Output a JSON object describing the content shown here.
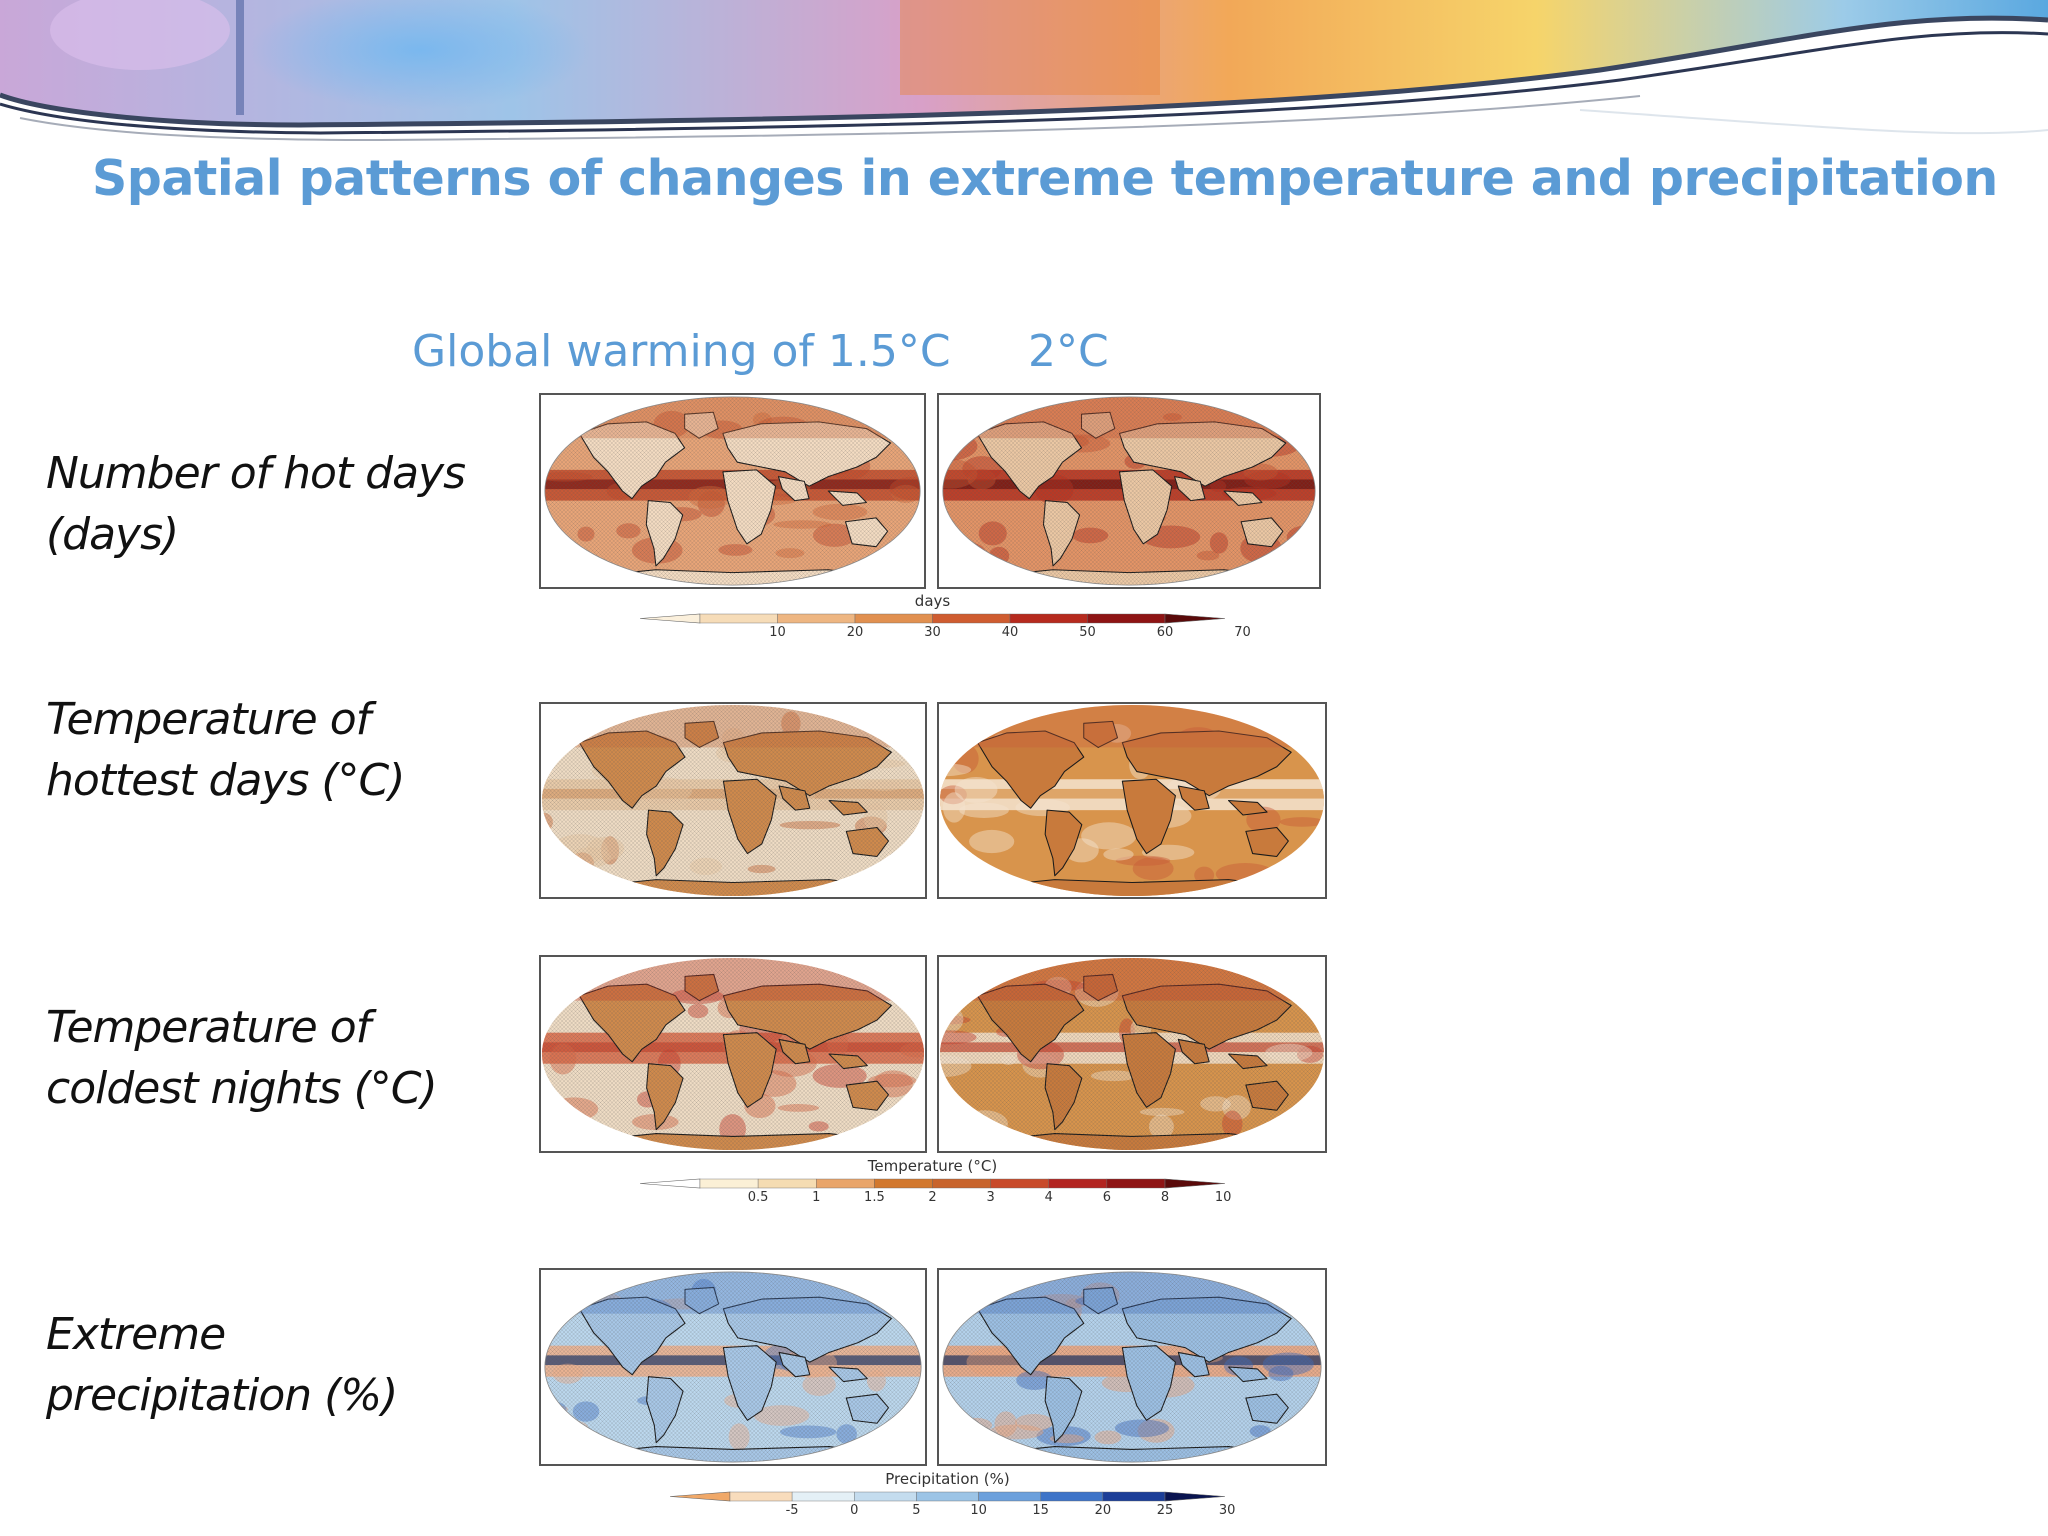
{
  "slide": {
    "title": "Spatial patterns of changes in extreme temperature and precipitation",
    "columns": [
      "Global warming of 1.5°C",
      "2°C"
    ]
  },
  "rows": [
    {
      "id": "hot-days",
      "label_lines": [
        "Number of hot days",
        "(days)"
      ]
    },
    {
      "id": "hottest-days",
      "label_lines": [
        "Temperature of",
        "hottest days (°C)"
      ]
    },
    {
      "id": "coldest-nights",
      "label_lines": [
        "Temperature of",
        "coldest nights (°C)"
      ]
    },
    {
      "id": "precip",
      "label_lines": [
        "Extreme",
        "precipitation (%)"
      ]
    }
  ],
  "colorbars": [
    {
      "id": "days",
      "title": "days",
      "ticks": [
        "10",
        "20",
        "30",
        "40",
        "50",
        "60",
        "70"
      ],
      "colors": [
        "#fbf0dc",
        "#f6dcb8",
        "#eeb682",
        "#e19050",
        "#cf5c30",
        "#b62a1e",
        "#8e1414",
        "#5a0a0a"
      ]
    },
    {
      "id": "temperature",
      "title": "Temperature (°C)",
      "ticks": [
        "0.5",
        "1",
        "1.5",
        "2",
        "3",
        "4",
        "6",
        "8",
        "10"
      ],
      "colors": [
        "#ffffff",
        "#fbf0d6",
        "#f5dcb2",
        "#e9a56a",
        "#d2782e",
        "#c8642c",
        "#c84a2a",
        "#b22420",
        "#8e1414",
        "#5a0a0a"
      ]
    },
    {
      "id": "precipitation",
      "title": "Precipitation (%)",
      "ticks": [
        "-5",
        "0",
        "5",
        "10",
        "15",
        "20",
        "25",
        "30"
      ],
      "colors": [
        "#f0a868",
        "#f8dcbc",
        "#e4f0f6",
        "#c4dcee",
        "#9cc4e6",
        "#6ca0dc",
        "#3e74c8",
        "#1c3e98",
        "#0a1450"
      ]
    }
  ],
  "map_colors": {
    "hot15": {
      "ocean": "#e9a578",
      "land": "#f4dcc2",
      "band": "#c24a2a",
      "core": "#7e1a16",
      "accent": "#d06a3c",
      "hatch": true
    },
    "hot20": {
      "ocean": "#e49466",
      "land": "#ecc8a4",
      "band": "#b6301e",
      "core": "#6c1410",
      "accent": "#c85430",
      "hatch": true
    },
    "hd15": {
      "ocean": "#efdcc4",
      "land": "#d08a4c",
      "band": "#e8c8a4",
      "core": "#d8a070",
      "accent": "#c86a3c",
      "hatch": true
    },
    "hd20": {
      "ocean": "#d8944c",
      "land": "#c87a3c",
      "band": "#f4e4d0",
      "core": "#d8944c",
      "accent": "#c85c38",
      "hatch": false
    },
    "cn15": {
      "ocean": "#efdcc4",
      "land": "#d08a4c",
      "band": "#d86848",
      "core": "#c84a32",
      "accent": "#c83c2c",
      "hatch": true
    },
    "cn20": {
      "ocean": "#d8944c",
      "land": "#c87a3c",
      "band": "#f4e4d0",
      "core": "#c85038",
      "accent": "#c8402c",
      "hatch": true
    },
    "pr15": {
      "ocean": "#bcd8ee",
      "land": "#a8c8e8",
      "band": "#f0b08a",
      "core": "#2a3e6c",
      "accent": "#4a7ac8",
      "hatch": true
    },
    "pr20": {
      "ocean": "#b4d2ec",
      "land": "#9cc0e4",
      "band": "#f0a47a",
      "core": "#243460",
      "accent": "#3e6cc0",
      "hatch": true
    }
  }
}
